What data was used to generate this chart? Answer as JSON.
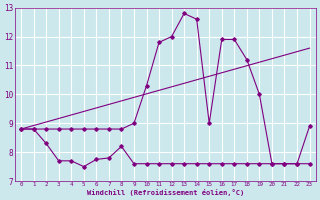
{
  "xlabel": "Windchill (Refroidissement éolien,°C)",
  "bg_color": "#cce8ed",
  "grid_color": "#ffffff",
  "line_color": "#800080",
  "xlim": [
    -0.5,
    23.5
  ],
  "ylim": [
    7,
    13
  ],
  "xticks": [
    0,
    1,
    2,
    3,
    4,
    5,
    6,
    7,
    8,
    9,
    10,
    11,
    12,
    13,
    14,
    15,
    16,
    17,
    18,
    19,
    20,
    21,
    22,
    23
  ],
  "yticks": [
    7,
    8,
    9,
    10,
    11,
    12,
    13
  ],
  "series1_x": [
    0,
    1,
    2,
    3,
    4,
    5,
    6,
    7,
    8,
    9,
    10,
    11,
    12,
    13,
    14,
    15,
    16,
    17,
    18,
    19,
    20,
    21,
    22,
    23
  ],
  "series1_y": [
    8.8,
    8.8,
    8.3,
    7.7,
    7.7,
    7.5,
    7.75,
    7.8,
    8.2,
    7.6,
    7.6,
    7.6,
    7.6,
    7.6,
    7.6,
    7.6,
    7.6,
    7.6,
    7.6,
    7.6,
    7.6,
    7.6,
    7.6,
    7.6
  ],
  "series2_x": [
    0,
    1,
    2,
    3,
    4,
    5,
    6,
    7,
    8,
    9,
    10,
    11,
    12,
    13,
    14,
    15,
    16,
    17,
    18,
    19,
    20,
    21,
    22,
    23
  ],
  "series2_y": [
    8.8,
    8.8,
    8.8,
    8.8,
    8.8,
    8.8,
    8.8,
    8.8,
    8.8,
    9.0,
    10.3,
    11.8,
    12.0,
    12.8,
    12.6,
    9.0,
    11.9,
    11.9,
    11.2,
    10.0,
    7.6,
    7.6,
    7.6,
    8.9
  ],
  "series3_x": [
    0,
    23
  ],
  "series3_y": [
    8.8,
    11.6
  ]
}
